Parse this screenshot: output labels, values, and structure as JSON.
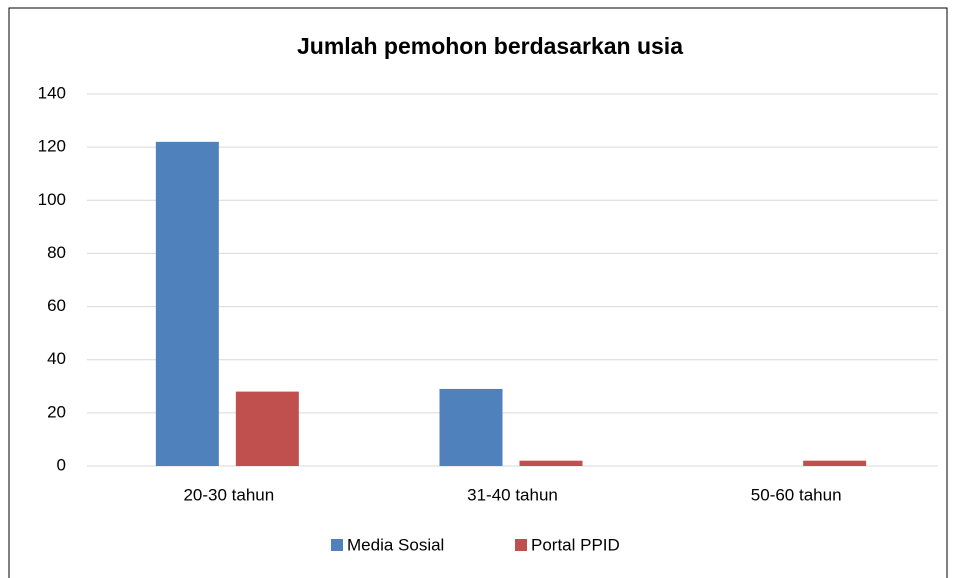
{
  "chart_data": {
    "type": "bar",
    "title": "Jumlah pemohon berdasarkan usia",
    "categories": [
      "20-30 tahun",
      "31-40 tahun",
      "50-60 tahun"
    ],
    "series": [
      {
        "name": "Media Sosial",
        "color": "#4f81bd",
        "values": [
          122,
          29,
          0
        ]
      },
      {
        "name": "Portal PPID",
        "color": "#c0504d",
        "values": [
          28,
          2,
          2
        ]
      }
    ],
    "ylim": [
      0,
      140
    ],
    "yticks": [
      0,
      20,
      40,
      60,
      80,
      100,
      120,
      140
    ],
    "grid": true,
    "legend": "bottom"
  }
}
